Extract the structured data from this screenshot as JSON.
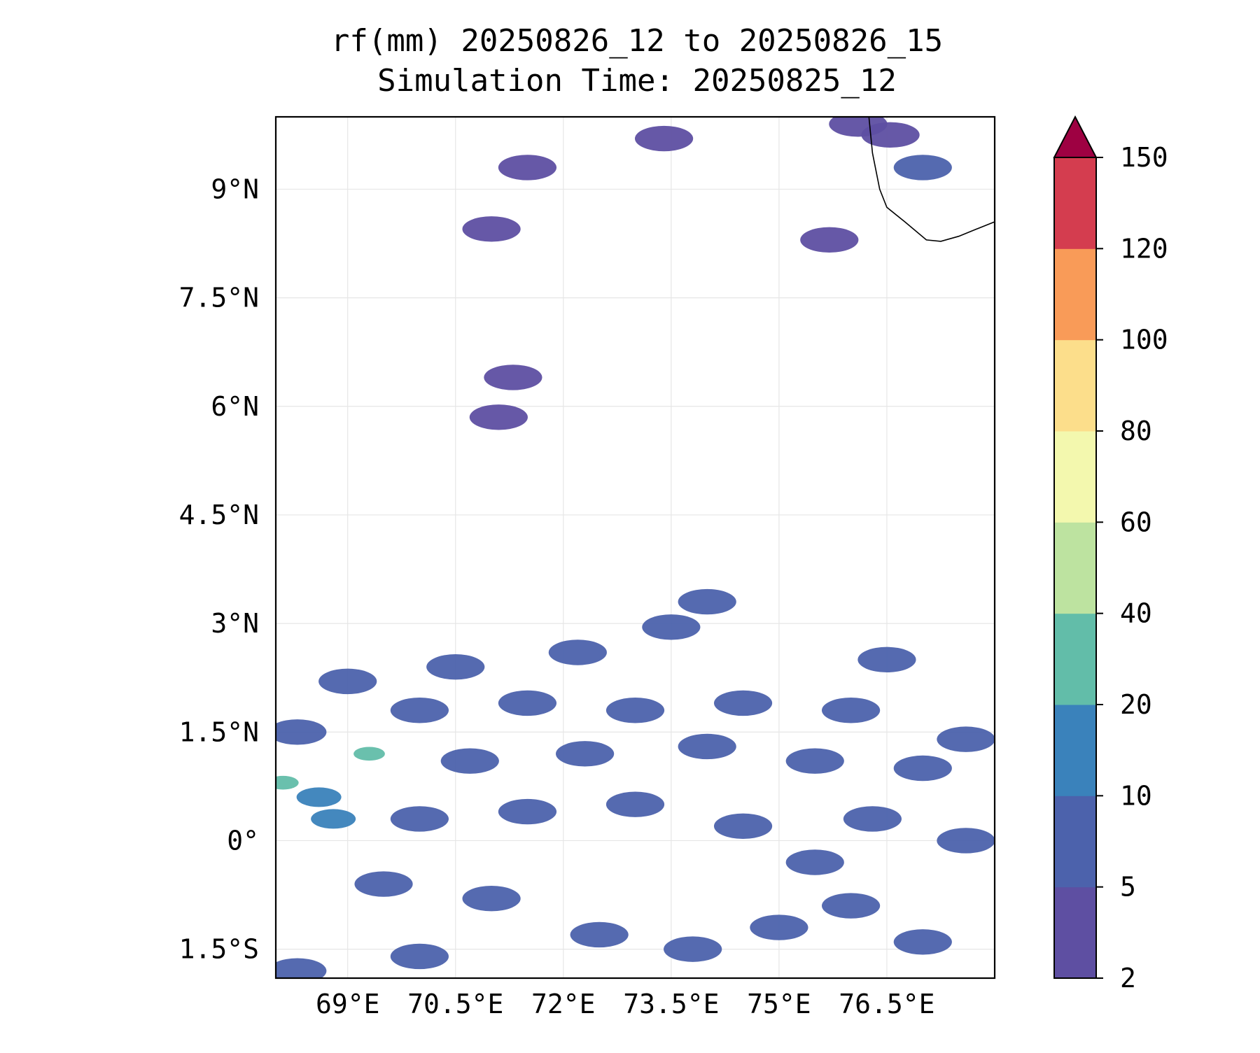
{
  "chart_data": {
    "type": "heatmap",
    "subtype": "filled-contour-map",
    "title": "rf(mm) 20250826_12 to 20250826_15",
    "subtitle": "Simulation Time: 20250825_12",
    "xlabel": "",
    "ylabel": "",
    "x_ticks": [
      {
        "value": 69.0,
        "label": "69°E"
      },
      {
        "value": 70.5,
        "label": "70.5°E"
      },
      {
        "value": 72.0,
        "label": "72°E"
      },
      {
        "value": 73.5,
        "label": "73.5°E"
      },
      {
        "value": 75.0,
        "label": "75°E"
      },
      {
        "value": 76.5,
        "label": "76.5°E"
      }
    ],
    "y_ticks": [
      {
        "value": 9.0,
        "label": "9°N"
      },
      {
        "value": 7.5,
        "label": "7.5°N"
      },
      {
        "value": 6.0,
        "label": "6°N"
      },
      {
        "value": 4.5,
        "label": "4.5°N"
      },
      {
        "value": 3.0,
        "label": "3°N"
      },
      {
        "value": 1.5,
        "label": "1.5°N"
      },
      {
        "value": 0.0,
        "label": "0°"
      },
      {
        "value": -1.5,
        "label": "1.5°S"
      }
    ],
    "xlim": [
      68.0,
      78.0
    ],
    "ylim": [
      -1.9,
      10.0
    ],
    "grid": true,
    "colorbar": {
      "levels": [
        2,
        5,
        10,
        20,
        40,
        60,
        80,
        100,
        120,
        150
      ],
      "labels": [
        "2",
        "5",
        "10",
        "20",
        "40",
        "60",
        "80",
        "100",
        "120",
        "150"
      ],
      "colors": [
        "#5e4fa2",
        "#4c62ac",
        "#3a82bb",
        "#62bda9",
        "#bde3a0",
        "#f3f8ae",
        "#fcde8b",
        "#f99b58",
        "#d43d4f",
        "#9e0142"
      ],
      "extend": "max",
      "placement": "right"
    },
    "coastline": {
      "color": "#000000",
      "points": [
        [
          76.25,
          10.0
        ],
        [
          76.3,
          9.5
        ],
        [
          76.4,
          9.0
        ],
        [
          76.5,
          8.75
        ],
        [
          76.75,
          8.55
        ],
        [
          77.05,
          8.3
        ],
        [
          77.25,
          8.28
        ],
        [
          77.5,
          8.35
        ],
        [
          77.75,
          8.45
        ],
        [
          78.0,
          8.55
        ]
      ]
    },
    "rain_cells": [
      {
        "lon": 77.0,
        "lat": 9.3,
        "value": 6
      },
      {
        "lon": 76.55,
        "lat": 9.75,
        "value": 4
      },
      {
        "lon": 76.1,
        "lat": 9.9,
        "value": 4
      },
      {
        "lon": 75.7,
        "lat": 8.3,
        "value": 3
      },
      {
        "lon": 73.4,
        "lat": 9.7,
        "value": 3
      },
      {
        "lon": 71.0,
        "lat": 8.45,
        "value": 3
      },
      {
        "lon": 71.3,
        "lat": 6.4,
        "value": 3
      },
      {
        "lon": 71.1,
        "lat": 5.85,
        "value": 3
      },
      {
        "lon": 71.5,
        "lat": 9.3,
        "value": 3
      },
      {
        "lon": 73.5,
        "lat": 2.95,
        "value": 7
      },
      {
        "lon": 74.0,
        "lat": 3.3,
        "value": 6
      },
      {
        "lon": 70.5,
        "lat": 2.4,
        "value": 6
      },
      {
        "lon": 72.2,
        "lat": 2.6,
        "value": 6
      },
      {
        "lon": 76.5,
        "lat": 2.5,
        "value": 6
      },
      {
        "lon": 69.0,
        "lat": 2.2,
        "value": 7
      },
      {
        "lon": 68.3,
        "lat": 1.5,
        "value": 9
      },
      {
        "lon": 68.1,
        "lat": 0.8,
        "value": 30
      },
      {
        "lon": 69.3,
        "lat": 1.2,
        "value": 25
      },
      {
        "lon": 68.6,
        "lat": 0.6,
        "value": 15
      },
      {
        "lon": 68.8,
        "lat": 0.3,
        "value": 12
      },
      {
        "lon": 70.0,
        "lat": 1.8,
        "value": 8
      },
      {
        "lon": 71.5,
        "lat": 1.9,
        "value": 8
      },
      {
        "lon": 73.0,
        "lat": 1.8,
        "value": 9
      },
      {
        "lon": 74.5,
        "lat": 1.9,
        "value": 8
      },
      {
        "lon": 76.0,
        "lat": 1.8,
        "value": 8
      },
      {
        "lon": 77.6,
        "lat": 1.4,
        "value": 7
      },
      {
        "lon": 70.7,
        "lat": 1.1,
        "value": 8
      },
      {
        "lon": 72.3,
        "lat": 1.2,
        "value": 8
      },
      {
        "lon": 74.0,
        "lat": 1.3,
        "value": 9
      },
      {
        "lon": 75.5,
        "lat": 1.1,
        "value": 8
      },
      {
        "lon": 77.0,
        "lat": 1.0,
        "value": 7
      },
      {
        "lon": 70.0,
        "lat": 0.3,
        "value": 7
      },
      {
        "lon": 71.5,
        "lat": 0.4,
        "value": 7
      },
      {
        "lon": 73.0,
        "lat": 0.5,
        "value": 6
      },
      {
        "lon": 74.5,
        "lat": 0.2,
        "value": 7
      },
      {
        "lon": 76.3,
        "lat": 0.3,
        "value": 8
      },
      {
        "lon": 77.6,
        "lat": 0.0,
        "value": 7
      },
      {
        "lon": 69.5,
        "lat": -0.6,
        "value": 7
      },
      {
        "lon": 71.0,
        "lat": -0.8,
        "value": 6
      },
      {
        "lon": 72.5,
        "lat": -1.3,
        "value": 7
      },
      {
        "lon": 73.8,
        "lat": -1.5,
        "value": 8
      },
      {
        "lon": 75.0,
        "lat": -1.2,
        "value": 8
      },
      {
        "lon": 76.0,
        "lat": -0.9,
        "value": 9
      },
      {
        "lon": 77.0,
        "lat": -1.4,
        "value": 8
      },
      {
        "lon": 75.5,
        "lat": -0.3,
        "value": 7
      },
      {
        "lon": 68.3,
        "lat": -1.8,
        "value": 6
      },
      {
        "lon": 70.0,
        "lat": -1.6,
        "value": 6
      }
    ]
  }
}
